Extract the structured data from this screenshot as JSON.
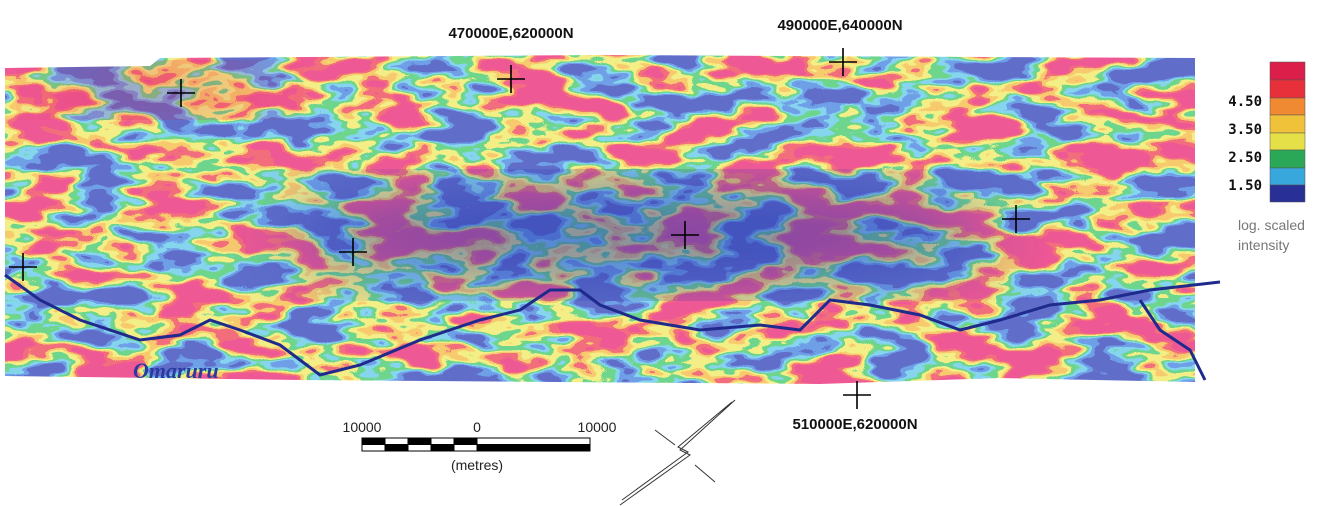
{
  "map": {
    "grid_labels": [
      "470000E,620000N",
      "490000E,640000N",
      "510000E,620000N"
    ],
    "river_label": "Omaruru",
    "legend": {
      "labels": [
        "4.50",
        "3.50",
        "2.50",
        "1.50"
      ],
      "caption": [
        "log. scaled",
        "intensity"
      ]
    },
    "scale_bar": {
      "labels": [
        "10000",
        "0",
        "10000"
      ],
      "unit": "(metres)"
    }
  }
}
